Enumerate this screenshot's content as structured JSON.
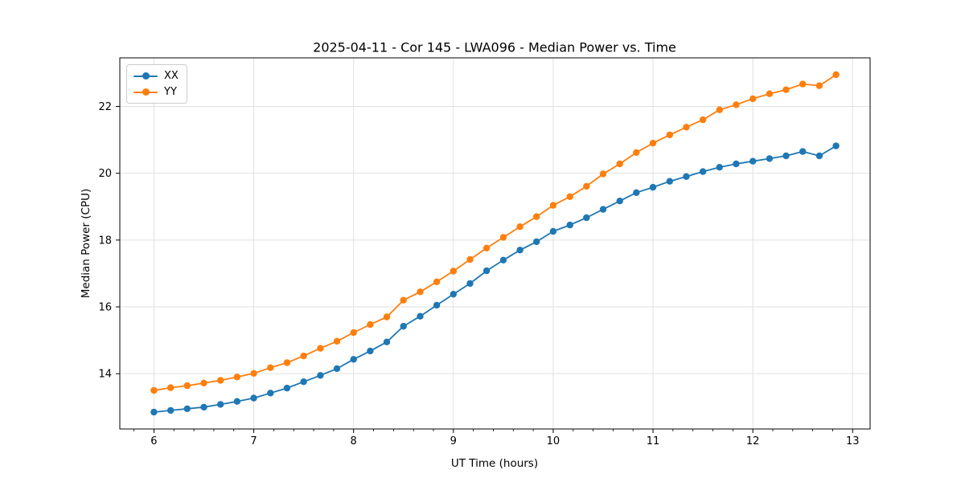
{
  "chart_data": {
    "type": "line",
    "title": "2025-04-11 - Cor 145 - LWA096 - Median Power vs. Time",
    "xlabel": "UT Time (hours)",
    "ylabel": "Median Power (CPU)",
    "xlim": [
      5.658,
      13.175
    ],
    "ylim": [
      12.345,
      23.455
    ],
    "xticks": [
      6,
      7,
      8,
      9,
      10,
      11,
      12,
      13
    ],
    "yticks": [
      14,
      16,
      18,
      20,
      22
    ],
    "xtick_minor_step": 0.2,
    "grid": true,
    "legend_position": "upper left",
    "marker": "circle",
    "x": [
      6.0,
      6.167,
      6.333,
      6.5,
      6.667,
      6.833,
      7.0,
      7.167,
      7.333,
      7.5,
      7.667,
      7.833,
      8.0,
      8.167,
      8.333,
      8.5,
      8.667,
      8.833,
      9.0,
      9.167,
      9.333,
      9.5,
      9.667,
      9.833,
      10.0,
      10.167,
      10.333,
      10.5,
      10.667,
      10.833,
      11.0,
      11.167,
      11.333,
      11.5,
      11.667,
      11.833,
      12.0,
      12.167,
      12.333,
      12.5,
      12.667,
      12.833
    ],
    "series": [
      {
        "name": "XX",
        "color": "#1f77b4",
        "values": [
          12.85,
          12.9,
          12.95,
          13.0,
          13.08,
          13.17,
          13.27,
          13.42,
          13.57,
          13.76,
          13.95,
          14.15,
          14.43,
          14.68,
          14.95,
          15.42,
          15.72,
          16.05,
          16.38,
          16.7,
          17.08,
          17.4,
          17.7,
          17.95,
          18.26,
          18.45,
          18.67,
          18.92,
          19.17,
          19.42,
          19.58,
          19.76,
          19.9,
          20.05,
          20.18,
          20.28,
          20.36,
          20.44,
          20.52,
          20.65,
          20.52,
          20.82
        ]
      },
      {
        "name": "YY",
        "color": "#ff7f0e",
        "values": [
          13.5,
          13.58,
          13.64,
          13.72,
          13.8,
          13.9,
          14.01,
          14.18,
          14.33,
          14.53,
          14.76,
          14.97,
          15.23,
          15.47,
          15.7,
          16.2,
          16.45,
          16.75,
          17.07,
          17.42,
          17.76,
          18.08,
          18.4,
          18.7,
          19.04,
          19.3,
          19.61,
          19.98,
          20.28,
          20.62,
          20.9,
          21.15,
          21.38,
          21.6,
          21.9,
          22.05,
          22.23,
          22.38,
          22.5,
          22.67,
          22.62,
          22.95
        ]
      }
    ]
  }
}
